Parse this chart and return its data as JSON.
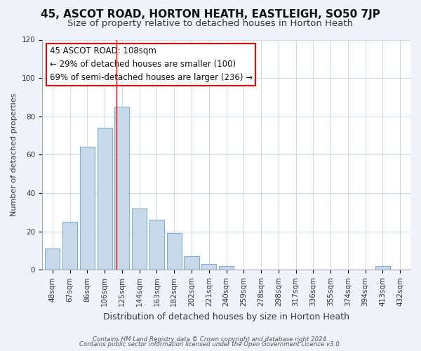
{
  "title": "45, ASCOT ROAD, HORTON HEATH, EASTLEIGH, SO50 7JP",
  "subtitle": "Size of property relative to detached houses in Horton Heath",
  "xlabel": "Distribution of detached houses by size in Horton Heath",
  "ylabel": "Number of detached properties",
  "footer_line1": "Contains HM Land Registry data © Crown copyright and database right 2024.",
  "footer_line2": "Contains public sector information licensed under the Open Government Licence v3.0.",
  "bar_labels": [
    "48sqm",
    "67sqm",
    "86sqm",
    "106sqm",
    "125sqm",
    "144sqm",
    "163sqm",
    "182sqm",
    "202sqm",
    "221sqm",
    "240sqm",
    "259sqm",
    "278sqm",
    "298sqm",
    "317sqm",
    "336sqm",
    "355sqm",
    "374sqm",
    "394sqm",
    "413sqm",
    "432sqm"
  ],
  "bar_values": [
    11,
    25,
    64,
    74,
    85,
    32,
    26,
    19,
    7,
    3,
    2,
    0,
    0,
    0,
    0,
    0,
    0,
    0,
    0,
    2,
    0
  ],
  "bar_color": "#c9d9ec",
  "bar_edge_color": "#7dadd4",
  "ylim": [
    0,
    120
  ],
  "yticks": [
    0,
    20,
    40,
    60,
    80,
    100,
    120
  ],
  "annotation_title": "45 ASCOT ROAD: 108sqm",
  "annotation_line1": "← 29% of detached houses are smaller (100)",
  "annotation_line2": "69% of semi-detached houses are larger (236) →",
  "vline_x_index": 3.68,
  "background_color": "#f0f4fa",
  "plot_bg_color": "#ffffff",
  "grid_color": "#c8d8ea",
  "title_fontsize": 11,
  "subtitle_fontsize": 9.5,
  "annotation_fontsize": 8.5,
  "tick_fontsize": 7.5,
  "ylabel_fontsize": 8,
  "xlabel_fontsize": 9
}
